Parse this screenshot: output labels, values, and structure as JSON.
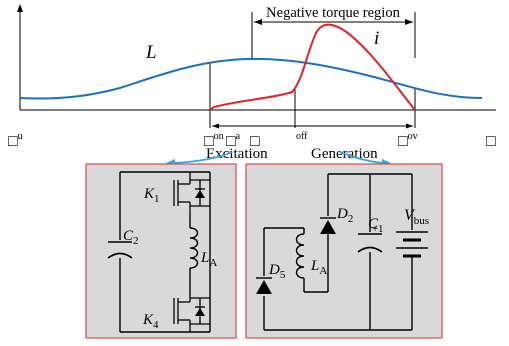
{
  "colors": {
    "inductance_curve": "#1f6fbf",
    "current_curve": "#e8202a",
    "panel_fill": "#d9d9d9",
    "panel_border": "#d94a4a",
    "phase_arrow": "#3aa8e0"
  },
  "waveform": {
    "inductance_label": "L",
    "current_label": "i",
    "region_label": "Negative torque region",
    "axis_symbol_left": "□",
    "axis_symbol_left_sub": "u",
    "axis_symbol_right": "□",
    "markers": [
      {
        "symbol": "□",
        "sub": "on"
      },
      {
        "symbol": "□",
        "sub": "a"
      },
      {
        "symbol": "□",
        "sub": ""
      },
      {
        "symbol": "",
        "sub": "off"
      },
      {
        "symbol": "□",
        "sub": "ov"
      }
    ]
  },
  "phases": {
    "excitation_label": "Excitation",
    "generation_label": "Generation"
  },
  "excitation_circuit": {
    "capacitor": {
      "main": "C",
      "sub": "2"
    },
    "upper_switch": {
      "main": "K",
      "sub": "1"
    },
    "inductor": {
      "main": "L",
      "sub": "A"
    },
    "lower_switch": {
      "main": "K",
      "sub": "4"
    }
  },
  "generation_circuit": {
    "diode_upper": {
      "main": "D",
      "sub": "2"
    },
    "capacitor": {
      "main": "C",
      "sub": "1"
    },
    "bus_voltage": {
      "main": "V",
      "sub": "bus"
    },
    "inductor": {
      "main": "L",
      "sub": "A"
    },
    "diode_lower": {
      "main": "D",
      "sub": "5"
    }
  }
}
